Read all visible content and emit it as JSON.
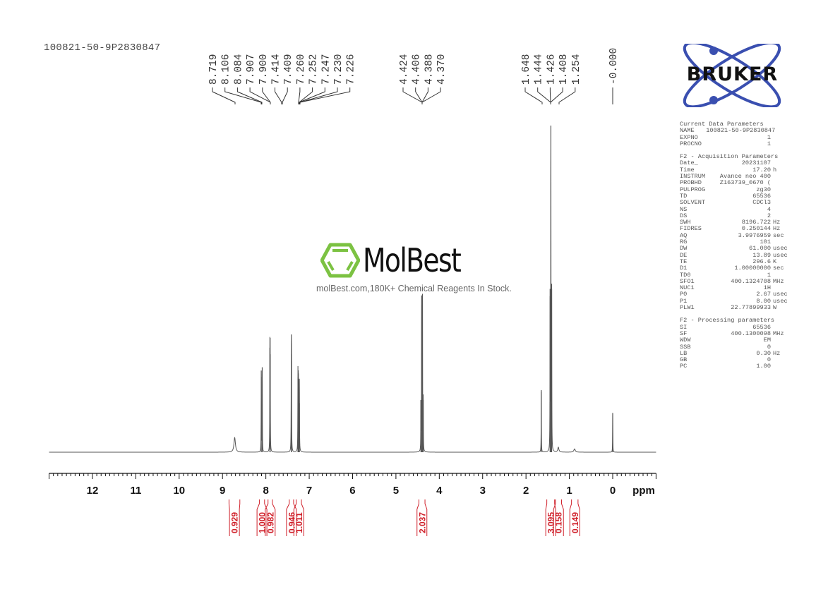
{
  "sample_name": "100821-50-9P2830847",
  "bruker_logo_text": "BRUKER",
  "watermark": {
    "brand": "MolBest",
    "tagline": "molBest.com,180K+ Chemical Reagents In Stock."
  },
  "colors": {
    "spectrum": "#555555",
    "integral": "#d0202a",
    "bruker_blue": "#3a4fb0",
    "molbest_green": "#7cc242"
  },
  "peak_labels": {
    "group1": [
      "8.719",
      "8.106",
      "8.084",
      "7.907",
      "7.900",
      "7.414",
      "7.409",
      "7.260",
      "7.252",
      "7.247",
      "7.230",
      "7.226"
    ],
    "group2": [
      "4.424",
      "4.406",
      "4.388",
      "4.370"
    ],
    "group3": [
      "1.648",
      "1.444",
      "1.426",
      "1.408",
      "1.254"
    ],
    "group4": [
      "-0.000"
    ]
  },
  "params": {
    "current": {
      "title": "Current Data Parameters",
      "rows": [
        {
          "k": "NAME",
          "v": "100821-50-9P2830847",
          "u": ""
        },
        {
          "k": "EXPNO",
          "v": "1",
          "u": ""
        },
        {
          "k": "PROCNO",
          "v": "1",
          "u": ""
        }
      ]
    },
    "acquisition": {
      "title": "F2 - Acquisition Parameters",
      "rows": [
        {
          "k": "Date_",
          "v": "20231107",
          "u": ""
        },
        {
          "k": "Time",
          "v": "17.20",
          "u": "h"
        },
        {
          "k": "INSTRUM",
          "v": "Avance neo 400",
          "u": ""
        },
        {
          "k": "PROBHD",
          "v": "Z163739_0670 (",
          "u": ""
        },
        {
          "k": "PULPROG",
          "v": "zg30",
          "u": ""
        },
        {
          "k": "TD",
          "v": "65536",
          "u": ""
        },
        {
          "k": "SOLVENT",
          "v": "CDCl3",
          "u": ""
        },
        {
          "k": "NS",
          "v": "4",
          "u": ""
        },
        {
          "k": "DS",
          "v": "2",
          "u": ""
        },
        {
          "k": "SWH",
          "v": "8196.722",
          "u": "Hz"
        },
        {
          "k": "FIDRES",
          "v": "0.250144",
          "u": "Hz"
        },
        {
          "k": "AQ",
          "v": "3.9976959",
          "u": "sec"
        },
        {
          "k": "RG",
          "v": "101",
          "u": ""
        },
        {
          "k": "DW",
          "v": "61.000",
          "u": "usec"
        },
        {
          "k": "DE",
          "v": "13.89",
          "u": "usec"
        },
        {
          "k": "TE",
          "v": "296.6",
          "u": "K"
        },
        {
          "k": "D1",
          "v": "1.00000000",
          "u": "sec"
        },
        {
          "k": "TD0",
          "v": "1",
          "u": ""
        },
        {
          "k": "SFO1",
          "v": "400.1324708",
          "u": "MHz"
        },
        {
          "k": "NUC1",
          "v": "1H",
          "u": ""
        },
        {
          "k": "P0",
          "v": "2.67",
          "u": "usec"
        },
        {
          "k": "P1",
          "v": "8.00",
          "u": "usec"
        },
        {
          "k": "PLW1",
          "v": "22.77899933",
          "u": "W"
        }
      ]
    },
    "processing": {
      "title": "F2 - Processing parameters",
      "rows": [
        {
          "k": "SI",
          "v": "65536",
          "u": ""
        },
        {
          "k": "SF",
          "v": "400.1300098",
          "u": "MHz"
        },
        {
          "k": "WDW",
          "v": "EM",
          "u": ""
        },
        {
          "k": "SSB",
          "v": "0",
          "u": ""
        },
        {
          "k": "LB",
          "v": "0.30",
          "u": "Hz"
        },
        {
          "k": "GB",
          "v": "0",
          "u": ""
        },
        {
          "k": "PC",
          "v": "1.00",
          "u": ""
        }
      ]
    }
  },
  "chart_data": {
    "type": "line",
    "title": "1H NMR spectrum 100821-50-9P2830847 (CDCl3, 400 MHz)",
    "xlabel": "ppm",
    "ylabel": "",
    "x_reversed": true,
    "xlim": [
      13.0,
      -1.0
    ],
    "ticks": [
      "12",
      "11",
      "10",
      "9",
      "8",
      "7",
      "6",
      "5",
      "4",
      "3",
      "2",
      "1",
      "0"
    ],
    "grid": false,
    "peaks": [
      {
        "ppm": 8.719,
        "rel_height": 0.045,
        "width": 0.04
      },
      {
        "ppm": 8.106,
        "rel_height": 0.25,
        "width": 0.006
      },
      {
        "ppm": 8.084,
        "rel_height": 0.26,
        "width": 0.006
      },
      {
        "ppm": 7.907,
        "rel_height": 0.32,
        "width": 0.006
      },
      {
        "ppm": 7.9,
        "rel_height": 0.3,
        "width": 0.006
      },
      {
        "ppm": 7.414,
        "rel_height": 0.3,
        "width": 0.006
      },
      {
        "ppm": 7.409,
        "rel_height": 0.28,
        "width": 0.006
      },
      {
        "ppm": 7.26,
        "rel_height": 0.23,
        "width": 0.006
      },
      {
        "ppm": 7.252,
        "rel_height": 0.18,
        "width": 0.006
      },
      {
        "ppm": 7.247,
        "rel_height": 0.17,
        "width": 0.006
      },
      {
        "ppm": 7.23,
        "rel_height": 0.16,
        "width": 0.006
      },
      {
        "ppm": 7.226,
        "rel_height": 0.15,
        "width": 0.006
      },
      {
        "ppm": 4.424,
        "rel_height": 0.16,
        "width": 0.006
      },
      {
        "ppm": 4.406,
        "rel_height": 0.48,
        "width": 0.006
      },
      {
        "ppm": 4.388,
        "rel_height": 0.48,
        "width": 0.006
      },
      {
        "ppm": 4.37,
        "rel_height": 0.16,
        "width": 0.006
      },
      {
        "ppm": 1.648,
        "rel_height": 0.19,
        "width": 0.006
      },
      {
        "ppm": 1.444,
        "rel_height": 0.5,
        "width": 0.006
      },
      {
        "ppm": 1.426,
        "rel_height": 1.0,
        "width": 0.006
      },
      {
        "ppm": 1.408,
        "rel_height": 0.5,
        "width": 0.006
      },
      {
        "ppm": 1.254,
        "rel_height": 0.015,
        "width": 0.03
      },
      {
        "ppm": 0.88,
        "rel_height": 0.01,
        "width": 0.04
      },
      {
        "ppm": 0.0,
        "rel_height": 0.12,
        "width": 0.006
      }
    ],
    "integrals": [
      {
        "from": 8.85,
        "to": 8.6,
        "value": "0.929"
      },
      {
        "from": 8.15,
        "to": 8.03,
        "value": "1.000"
      },
      {
        "from": 7.95,
        "to": 7.85,
        "value": "0.982"
      },
      {
        "from": 7.46,
        "to": 7.36,
        "value": "0.946"
      },
      {
        "from": 7.3,
        "to": 7.18,
        "value": "1.011"
      },
      {
        "from": 4.47,
        "to": 4.33,
        "value": "2.037"
      },
      {
        "from": 1.52,
        "to": 1.34,
        "value": "3.095"
      },
      {
        "from": 1.32,
        "to": 1.18,
        "value": "0.158"
      },
      {
        "from": 0.95,
        "to": 0.8,
        "value": "0.149"
      }
    ]
  }
}
